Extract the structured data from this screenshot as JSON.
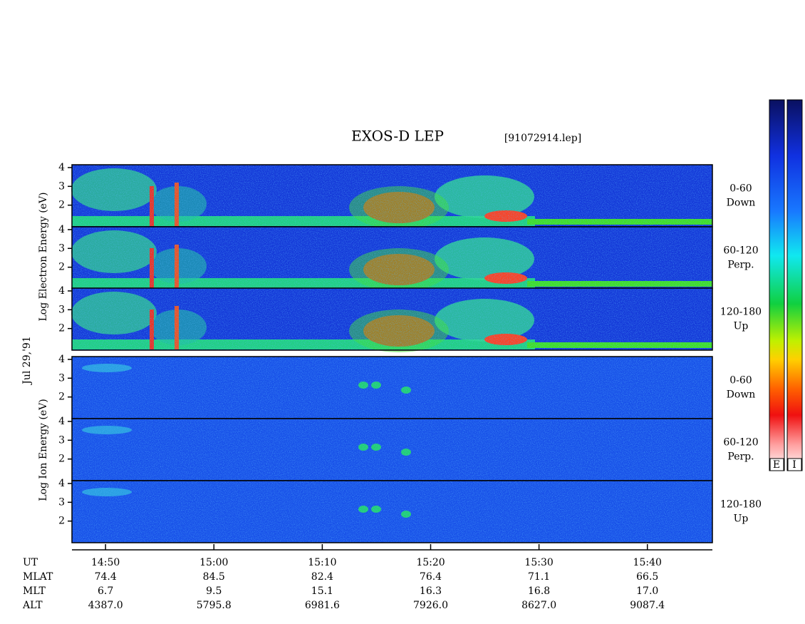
{
  "title": "EXOS-D LEP",
  "file": "[91072914.lep]",
  "date": "Jul 29,'91",
  "y_labels": {
    "electron": "Log Electron Energy (eV)",
    "ion": "Log Ion Energy (eV)"
  },
  "panels": [
    {
      "group": "electron",
      "angle": "0-60",
      "direction": "Down",
      "ylim": [
        0.85,
        4.15
      ],
      "yticks": [
        2,
        3,
        4
      ]
    },
    {
      "group": "electron",
      "angle": "60-120",
      "direction": "Perp.",
      "ylim": [
        0.85,
        4.15
      ],
      "yticks": [
        2,
        3,
        4
      ]
    },
    {
      "group": "electron",
      "angle": "120-180",
      "direction": "Up",
      "ylim": [
        0.85,
        4.15
      ],
      "yticks": [
        2,
        3,
        4
      ]
    },
    {
      "group": "ion",
      "angle": "0-60",
      "direction": "Down",
      "ylim": [
        0.85,
        4.15
      ],
      "yticks": [
        2,
        3,
        4
      ]
    },
    {
      "group": "ion",
      "angle": "60-120",
      "direction": "Perp.",
      "ylim": [
        0.85,
        4.15
      ],
      "yticks": [
        2,
        3,
        4
      ]
    },
    {
      "group": "ion",
      "angle": "120-180",
      "direction": "Up",
      "ylim": [
        0.85,
        4.15
      ],
      "yticks": [
        2,
        3,
        4
      ]
    }
  ],
  "x_axis": {
    "xlim": [
      886.9,
      946
    ],
    "xticks": [
      {
        "value": 890,
        "label": "14:50"
      },
      {
        "value": 900,
        "label": "15:00"
      },
      {
        "value": 910,
        "label": "15:10"
      },
      {
        "value": 920,
        "label": "15:20"
      },
      {
        "value": 930,
        "label": "15:30"
      },
      {
        "value": 940,
        "label": "15:40"
      }
    ]
  },
  "ephemeris": [
    {
      "label": "UT"
    },
    {
      "label": "MLAT",
      "values": [
        "74.4",
        "84.5",
        "82.4",
        "76.4",
        "71.1",
        "66.5"
      ]
    },
    {
      "label": "MLT",
      "values": [
        "6.7",
        "9.5",
        "15.1",
        "16.3",
        "16.8",
        "17.0"
      ]
    },
    {
      "label": "ALT",
      "values": [
        "4387.0",
        "5795.8",
        "6981.6",
        "7926.0",
        "8627.0",
        "9087.4"
      ]
    }
  ],
  "colorbar": {
    "labels": [
      "E",
      "I"
    ]
  }
}
